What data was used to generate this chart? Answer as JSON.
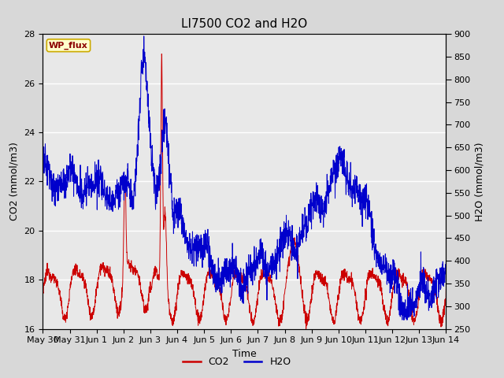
{
  "title": "LI7500 CO2 and H2O",
  "xlabel": "Time",
  "ylabel_left": "CO2 (mmol/m3)",
  "ylabel_right": "H2O (mmol/m3)",
  "co2_ylim": [
    16,
    28
  ],
  "h2o_ylim": [
    250,
    900
  ],
  "co2_yticks": [
    16,
    18,
    20,
    22,
    24,
    26,
    28
  ],
  "h2o_yticks": [
    250,
    300,
    350,
    400,
    450,
    500,
    550,
    600,
    650,
    700,
    750,
    800,
    850,
    900
  ],
  "xtick_labels": [
    "May 30",
    "May 31",
    "Jun 1",
    "Jun 2",
    "Jun 3",
    "Jun 4",
    "Jun 5",
    "Jun 6",
    "Jun 7",
    "Jun 8",
    "Jun 9",
    "Jun 10",
    "Jun 11",
    "Jun 12",
    "Jun 13",
    "Jun 14"
  ],
  "co2_color": "#cc0000",
  "h2o_color": "#0000cc",
  "fig_bg_color": "#d8d8d8",
  "plot_bg_color": "#e8e8e8",
  "grid_color": "#ffffff",
  "annotation_text": "WP_flux",
  "annotation_bg": "#ffffcc",
  "annotation_border": "#ccaa00",
  "legend_co2": "CO2",
  "legend_h2o": "H2O",
  "title_fontsize": 11,
  "label_fontsize": 9,
  "tick_fontsize": 8,
  "legend_fontsize": 9
}
